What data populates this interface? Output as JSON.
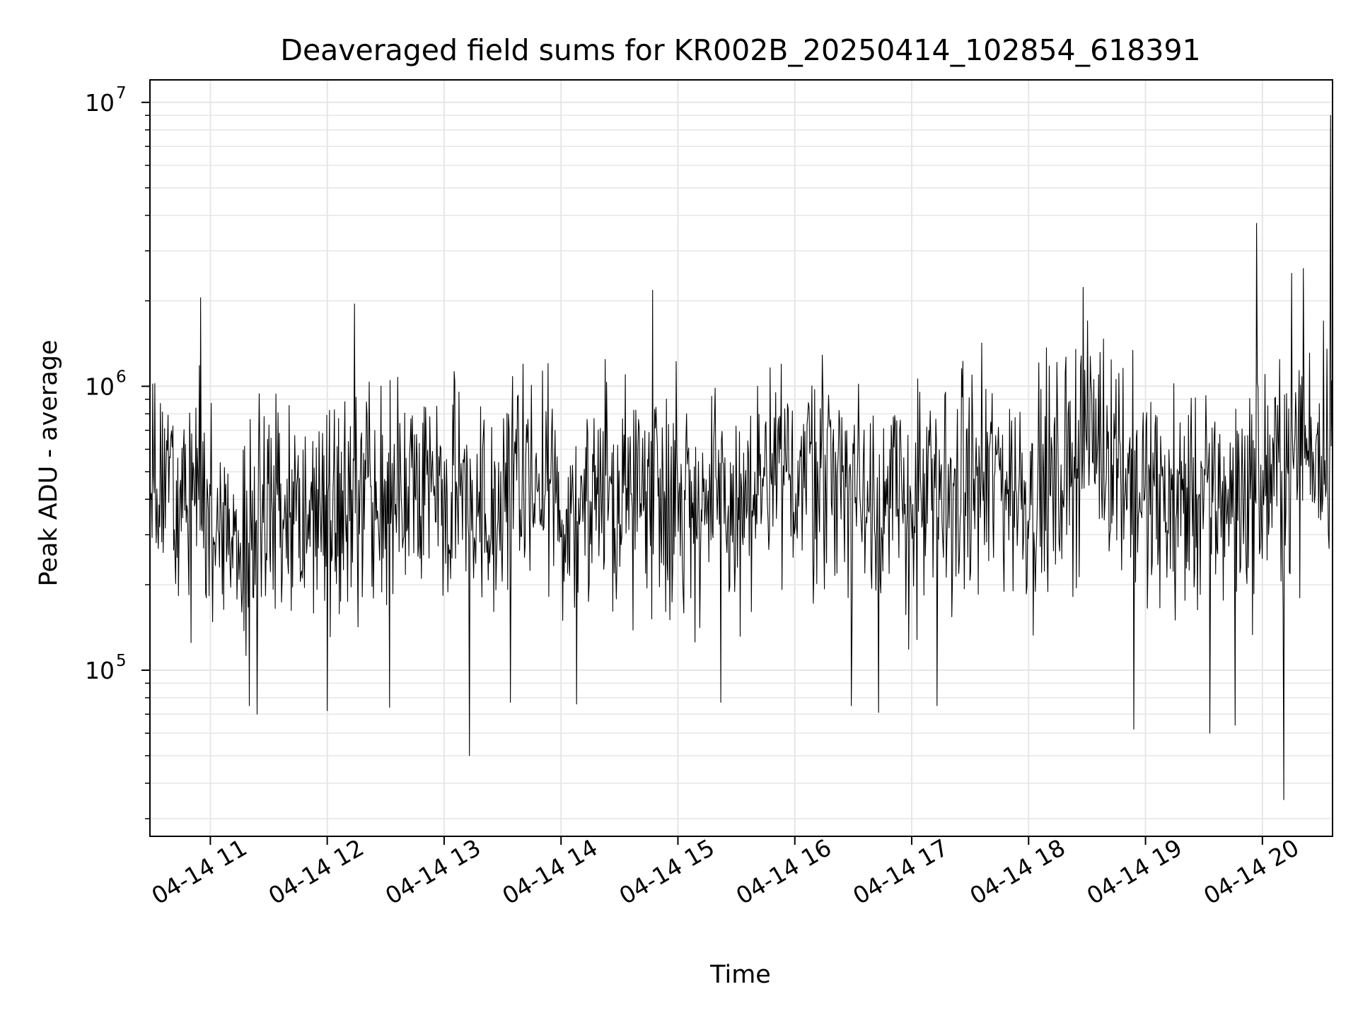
{
  "chart_data": {
    "type": "line",
    "title": "Deaveraged field sums for KR002B_20250414_102854_618391",
    "xlabel": "Time",
    "ylabel": "Peak ADU - average",
    "yscale": "log",
    "ylim": [
      26000,
      12000000
    ],
    "xlim": [
      "2025-04-14 10:29",
      "2025-04-14 20:36"
    ],
    "grid": true,
    "line_color": "#000000",
    "grid_color": "#e6e6e6",
    "x_ticks": [
      {
        "value": "2025-04-14 11:00",
        "label": "04-14 11"
      },
      {
        "value": "2025-04-14 12:00",
        "label": "04-14 12"
      },
      {
        "value": "2025-04-14 13:00",
        "label": "04-14 13"
      },
      {
        "value": "2025-04-14 14:00",
        "label": "04-14 14"
      },
      {
        "value": "2025-04-14 15:00",
        "label": "04-14 15"
      },
      {
        "value": "2025-04-14 16:00",
        "label": "04-14 16"
      },
      {
        "value": "2025-04-14 17:00",
        "label": "04-14 17"
      },
      {
        "value": "2025-04-14 18:00",
        "label": "04-14 18"
      },
      {
        "value": "2025-04-14 19:00",
        "label": "04-14 19"
      },
      {
        "value": "2025-04-14 20:00",
        "label": "04-14 20"
      }
    ],
    "y_ticks": [
      {
        "value": 100000,
        "base": "10",
        "exp": "5"
      },
      {
        "value": 1000000,
        "base": "10",
        "exp": "6"
      },
      {
        "value": 10000000,
        "base": "10",
        "exp": "7"
      }
    ],
    "series": [
      {
        "x": [
          "2025-04-14 10:29",
          "2025-04-14 10:45",
          "2025-04-14 11:00",
          "2025-04-14 11:15",
          "2025-04-14 11:30",
          "2025-04-14 11:45",
          "2025-04-14 12:00",
          "2025-04-14 12:15",
          "2025-04-14 12:30",
          "2025-04-14 12:45",
          "2025-04-14 13:00",
          "2025-04-14 13:15",
          "2025-04-14 13:30",
          "2025-04-14 13:45",
          "2025-04-14 14:00",
          "2025-04-14 14:15",
          "2025-04-14 14:30",
          "2025-04-14 14:45",
          "2025-04-14 15:00",
          "2025-04-14 15:15",
          "2025-04-14 15:30",
          "2025-04-14 15:45",
          "2025-04-14 16:00",
          "2025-04-14 16:15",
          "2025-04-14 16:30",
          "2025-04-14 16:45",
          "2025-04-14 17:00",
          "2025-04-14 17:15",
          "2025-04-14 17:30",
          "2025-04-14 17:45",
          "2025-04-14 18:00",
          "2025-04-14 18:15",
          "2025-04-14 18:30",
          "2025-04-14 18:45",
          "2025-04-14 19:00",
          "2025-04-14 19:15",
          "2025-04-14 19:30",
          "2025-04-14 19:45",
          "2025-04-14 20:00",
          "2025-04-14 20:15",
          "2025-04-14 20:36"
        ],
        "y": [
          500000,
          450000,
          400000,
          300000,
          380000,
          350000,
          400000,
          380000,
          360000,
          420000,
          450000,
          400000,
          380000,
          450000,
          400000,
          380000,
          420000,
          480000,
          420000,
          380000,
          350000,
          420000,
          500000,
          550000,
          450000,
          400000,
          380000,
          400000,
          450000,
          480000,
          420000,
          450000,
          700000,
          600000,
          400000,
          380000,
          420000,
          400000,
          450000,
          550000,
          700000
        ]
      }
    ],
    "notable_points": [
      {
        "x": "2025-04-14 10:55",
        "y": 2050000
      },
      {
        "x": "2025-04-14 11:20",
        "y": 75000
      },
      {
        "x": "2025-04-14 11:24",
        "y": 70000
      },
      {
        "x": "2025-04-14 12:00",
        "y": 72000
      },
      {
        "x": "2025-04-14 12:14",
        "y": 1950000
      },
      {
        "x": "2025-04-14 12:32",
        "y": 74000
      },
      {
        "x": "2025-04-14 13:13",
        "y": 50000
      },
      {
        "x": "2025-04-14 13:34",
        "y": 77000
      },
      {
        "x": "2025-04-14 14:08",
        "y": 76000
      },
      {
        "x": "2025-04-14 14:47",
        "y": 2180000
      },
      {
        "x": "2025-04-14 15:22",
        "y": 77000
      },
      {
        "x": "2025-04-14 16:29",
        "y": 75000
      },
      {
        "x": "2025-04-14 16:43",
        "y": 71000
      },
      {
        "x": "2025-04-14 17:13",
        "y": 75000
      },
      {
        "x": "2025-04-14 18:28",
        "y": 2230000
      },
      {
        "x": "2025-04-14 18:54",
        "y": 62000
      },
      {
        "x": "2025-04-14 19:33",
        "y": 60000
      },
      {
        "x": "2025-04-14 19:46",
        "y": 64000
      },
      {
        "x": "2025-04-14 19:57",
        "y": 3750000
      },
      {
        "x": "2025-04-14 20:11",
        "y": 35000
      },
      {
        "x": "2025-04-14 20:15",
        "y": 2500000
      },
      {
        "x": "2025-04-14 20:21",
        "y": 2600000
      },
      {
        "x": "2025-04-14 20:35",
        "y": 9000000
      }
    ]
  }
}
